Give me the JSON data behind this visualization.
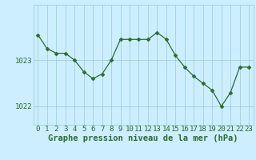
{
  "x": [
    0,
    1,
    2,
    3,
    4,
    5,
    6,
    7,
    8,
    9,
    10,
    11,
    12,
    13,
    14,
    15,
    16,
    17,
    18,
    19,
    20,
    21,
    22,
    23
  ],
  "y": [
    1023.55,
    1023.25,
    1023.15,
    1023.15,
    1023.0,
    1022.75,
    1022.6,
    1022.7,
    1023.0,
    1023.45,
    1023.45,
    1023.45,
    1023.45,
    1023.6,
    1023.45,
    1023.1,
    1022.85,
    1022.65,
    1022.5,
    1022.35,
    1022.0,
    1022.3,
    1022.85,
    1022.85
  ],
  "line_color": "#2d6a2d",
  "marker": "D",
  "marker_size": 2.5,
  "bg_color": "#cceeff",
  "grid_color": "#99cccc",
  "xlabel": "Graphe pression niveau de la mer (hPa)",
  "xlabel_fontsize": 7.5,
  "ylabel_ticks": [
    1022,
    1023
  ],
  "ylim": [
    1021.6,
    1024.2
  ],
  "xlim": [
    -0.5,
    23.5
  ],
  "tick_fontsize": 6.5,
  "label_color": "#2d6a2d"
}
